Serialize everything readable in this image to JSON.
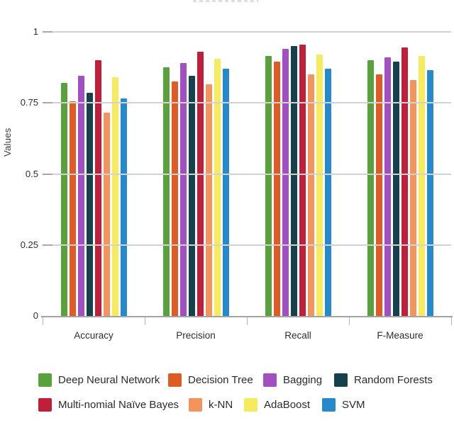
{
  "chart_data": {
    "type": "bar",
    "title": "",
    "xlabel": "",
    "ylabel": "Values",
    "categories": [
      "Accuracy",
      "Precision",
      "Recall",
      "F-Measure"
    ],
    "series": [
      {
        "name": "Deep Neural Network",
        "color": "#58A13C",
        "values": [
          0.82,
          0.875,
          0.915,
          0.9
        ]
      },
      {
        "name": "Decision Tree",
        "color": "#DE5B23",
        "values": [
          0.755,
          0.825,
          0.895,
          0.85
        ]
      },
      {
        "name": "Bagging",
        "color": "#A14FC1",
        "values": [
          0.845,
          0.89,
          0.94,
          0.91
        ]
      },
      {
        "name": "Random Forests",
        "color": "#15414D",
        "values": [
          0.785,
          0.845,
          0.95,
          0.895
        ]
      },
      {
        "name": "Multi-nomial Naïve Bayes",
        "color": "#C01F3A",
        "values": [
          0.9,
          0.93,
          0.955,
          0.945
        ]
      },
      {
        "name": "k-NN",
        "color": "#F2945C",
        "values": [
          0.715,
          0.815,
          0.85,
          0.83
        ]
      },
      {
        "name": "AdaBoost",
        "color": "#F6EB5F",
        "values": [
          0.84,
          0.905,
          0.92,
          0.915
        ]
      },
      {
        "name": "SVM",
        "color": "#2589CB",
        "values": [
          0.765,
          0.87,
          0.87,
          0.865
        ]
      }
    ],
    "ylim": [
      0,
      1
    ],
    "y_ticks": [
      0,
      0.25,
      0.5,
      0.75,
      1
    ],
    "y_tick_labels": [
      "0",
      "0.25",
      "0.5",
      "0.75",
      "1"
    ],
    "grid": true,
    "legend_position": "bottom",
    "legend_rows": [
      [
        "Deep Neural Network",
        "Decision Tree",
        "Bagging",
        "Random Forests"
      ],
      [
        "Multi-nomial Naïve Bayes",
        "k-NN",
        "AdaBoost",
        "SVM"
      ]
    ],
    "colors": {
      "gridline": "#d2d2d2",
      "axis_line": "#a2a2a2",
      "text": "#2e2e2e",
      "background": "#ffffff"
    }
  }
}
